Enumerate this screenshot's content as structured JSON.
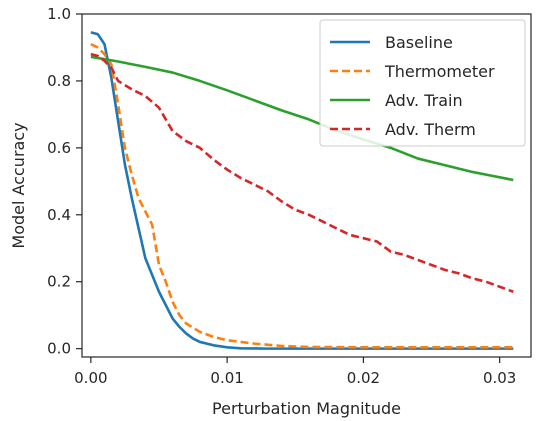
{
  "chart_data": {
    "type": "line",
    "xlabel": "Perturbation Magnitude",
    "ylabel": "Model Accuracy",
    "xlim": [
      -0.00065,
      0.0323
    ],
    "ylim": [
      -0.025,
      1.0
    ],
    "xticks": [
      0.0,
      0.01,
      0.02,
      0.03
    ],
    "xtick_labels": [
      "0.00",
      "0.01",
      "0.02",
      "0.03"
    ],
    "yticks": [
      0.0,
      0.2,
      0.4,
      0.6,
      0.8,
      1.0
    ],
    "ytick_labels": [
      "0.0",
      "0.2",
      "0.4",
      "0.6",
      "0.8",
      "1.0"
    ],
    "grid": false,
    "legend_position": "top-right",
    "series": [
      {
        "name": "Baseline",
        "color": "#1f77b4",
        "dash": "solid",
        "points": [
          [
            0.0,
            0.945
          ],
          [
            0.0005,
            0.94
          ],
          [
            0.001,
            0.91
          ],
          [
            0.0015,
            0.81
          ],
          [
            0.002,
            0.68
          ],
          [
            0.0025,
            0.55
          ],
          [
            0.003,
            0.45
          ],
          [
            0.0035,
            0.36
          ],
          [
            0.004,
            0.27
          ],
          [
            0.0045,
            0.22
          ],
          [
            0.005,
            0.17
          ],
          [
            0.0055,
            0.13
          ],
          [
            0.006,
            0.09
          ],
          [
            0.0065,
            0.065
          ],
          [
            0.007,
            0.045
          ],
          [
            0.0075,
            0.03
          ],
          [
            0.008,
            0.02
          ],
          [
            0.009,
            0.01
          ],
          [
            0.01,
            0.004
          ],
          [
            0.011,
            0.001
          ],
          [
            0.013,
            0.0
          ],
          [
            0.02,
            0.0
          ],
          [
            0.031,
            0.0
          ]
        ]
      },
      {
        "name": "Thermometer",
        "color": "#ff7f0e",
        "dash": "dashed",
        "points": [
          [
            0.0,
            0.91
          ],
          [
            0.0005,
            0.9
          ],
          [
            0.001,
            0.88
          ],
          [
            0.0015,
            0.85
          ],
          [
            0.002,
            0.73
          ],
          [
            0.0025,
            0.6
          ],
          [
            0.003,
            0.52
          ],
          [
            0.0035,
            0.45
          ],
          [
            0.004,
            0.41
          ],
          [
            0.0045,
            0.37
          ],
          [
            0.005,
            0.25
          ],
          [
            0.0055,
            0.2
          ],
          [
            0.006,
            0.14
          ],
          [
            0.0065,
            0.1
          ],
          [
            0.007,
            0.075
          ],
          [
            0.008,
            0.05
          ],
          [
            0.009,
            0.035
          ],
          [
            0.01,
            0.025
          ],
          [
            0.011,
            0.02
          ],
          [
            0.012,
            0.015
          ],
          [
            0.014,
            0.008
          ],
          [
            0.016,
            0.005
          ],
          [
            0.02,
            0.004
          ],
          [
            0.031,
            0.004
          ]
        ]
      },
      {
        "name": "Adv. Train",
        "color": "#2ca02c",
        "dash": "solid",
        "points": [
          [
            0.0,
            0.872
          ],
          [
            0.002,
            0.858
          ],
          [
            0.004,
            0.842
          ],
          [
            0.006,
            0.825
          ],
          [
            0.008,
            0.8
          ],
          [
            0.01,
            0.772
          ],
          [
            0.012,
            0.742
          ],
          [
            0.014,
            0.712
          ],
          [
            0.016,
            0.685
          ],
          [
            0.018,
            0.652
          ],
          [
            0.02,
            0.625
          ],
          [
            0.022,
            0.6
          ],
          [
            0.024,
            0.568
          ],
          [
            0.026,
            0.548
          ],
          [
            0.028,
            0.528
          ],
          [
            0.029,
            0.52
          ],
          [
            0.031,
            0.504
          ]
        ]
      },
      {
        "name": "Adv. Therm",
        "color": "#d62728",
        "dash": "dashed",
        "points": [
          [
            0.0,
            0.88
          ],
          [
            0.0005,
            0.875
          ],
          [
            0.001,
            0.86
          ],
          [
            0.0015,
            0.84
          ],
          [
            0.002,
            0.8
          ],
          [
            0.003,
            0.775
          ],
          [
            0.004,
            0.755
          ],
          [
            0.005,
            0.72
          ],
          [
            0.006,
            0.65
          ],
          [
            0.007,
            0.62
          ],
          [
            0.008,
            0.6
          ],
          [
            0.009,
            0.565
          ],
          [
            0.01,
            0.535
          ],
          [
            0.011,
            0.51
          ],
          [
            0.012,
            0.49
          ],
          [
            0.013,
            0.47
          ],
          [
            0.014,
            0.44
          ],
          [
            0.015,
            0.415
          ],
          [
            0.016,
            0.4
          ],
          [
            0.017,
            0.38
          ],
          [
            0.018,
            0.36
          ],
          [
            0.019,
            0.34
          ],
          [
            0.02,
            0.33
          ],
          [
            0.021,
            0.32
          ],
          [
            0.022,
            0.29
          ],
          [
            0.023,
            0.28
          ],
          [
            0.024,
            0.265
          ],
          [
            0.025,
            0.25
          ],
          [
            0.026,
            0.235
          ],
          [
            0.027,
            0.225
          ],
          [
            0.028,
            0.21
          ],
          [
            0.029,
            0.2
          ],
          [
            0.03,
            0.185
          ],
          [
            0.031,
            0.17
          ]
        ]
      }
    ]
  }
}
